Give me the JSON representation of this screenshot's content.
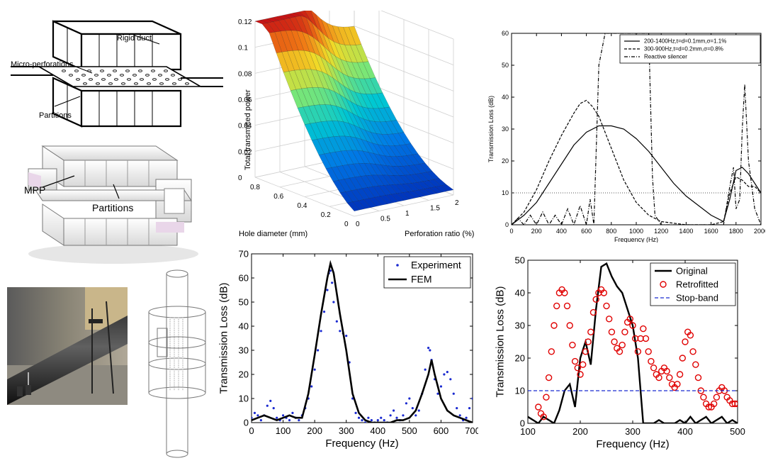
{
  "diagrams": {
    "duct_schematic": {
      "labels": [
        "Rigid duct",
        "Micro-perforations",
        "Partitions"
      ]
    },
    "cad_model": {
      "labels": [
        "MPP",
        "Partitions"
      ]
    }
  },
  "chart_data": [
    {
      "id": "surface3d",
      "type": "surface",
      "zlabel": "Total transmitted power",
      "xlabel": "Hole diameter (mm)",
      "ylabel": "Perforation ratio (%)",
      "z_ticks": [
        "0",
        "0.02",
        "0.04",
        "0.06",
        "0.08",
        "0.1",
        "0.12"
      ],
      "x_ticks": [
        "0",
        "0.2",
        "0.4",
        "0.6",
        "0.8"
      ],
      "y_ticks": [
        "0",
        "0.5",
        "1",
        "1.5",
        "2"
      ],
      "zlim": [
        0,
        0.12
      ],
      "grid": true
    },
    {
      "id": "tl_top_right",
      "type": "line",
      "xlabel": "Frequency (Hz)",
      "ylabel": "Transmission Loss (dB)",
      "xlim": [
        0,
        2000
      ],
      "ylim": [
        0,
        60
      ],
      "x_ticks": [
        "0",
        "200",
        "400",
        "600",
        "800",
        "1000",
        "1200",
        "1400",
        "1600",
        "1800",
        "2000"
      ],
      "y_ticks": [
        "0",
        "10",
        "20",
        "30",
        "40",
        "50",
        "60"
      ],
      "reference_line": 10,
      "legend": "top-right",
      "series": [
        {
          "name": "200-1400Hz,t=d=0.1mm,σ=1.1%",
          "style": "solid",
          "x": [
            0,
            100,
            200,
            300,
            400,
            500,
            600,
            700,
            800,
            900,
            1000,
            1100,
            1200,
            1300,
            1400,
            1500,
            1600,
            1700,
            1750,
            1800,
            1850,
            1900,
            1950,
            2000
          ],
          "y": [
            0,
            3,
            7,
            13,
            19,
            25,
            29,
            31,
            31,
            30,
            27,
            23,
            18,
            13,
            9,
            6,
            3,
            1,
            8,
            17,
            18,
            16,
            13,
            10
          ]
        },
        {
          "name": "300-900Hz,t=d=0.2mm,σ=0.8%",
          "style": "dashed",
          "x": [
            0,
            100,
            200,
            300,
            400,
            500,
            550,
            600,
            650,
            700,
            800,
            900,
            1000,
            1100,
            1200,
            1400,
            1600,
            1700,
            1750,
            1800,
            1850,
            1900,
            1950,
            2000
          ],
          "y": [
            0,
            4,
            11,
            20,
            28,
            35,
            38,
            39,
            37,
            34,
            24,
            14,
            7,
            3,
            1,
            0,
            0,
            1,
            10,
            15,
            14,
            12,
            12,
            10
          ]
        },
        {
          "name": "Reactive silencer",
          "style": "dashdot",
          "x": [
            0,
            50,
            100,
            150,
            200,
            250,
            300,
            350,
            400,
            450,
            500,
            550,
            600,
            630,
            660,
            700,
            750,
            1000,
            1100,
            1130,
            1150,
            1200,
            1300,
            1400,
            1600,
            1700,
            1750,
            1780,
            1800,
            1830,
            1850,
            1870,
            1900,
            1950,
            2000
          ],
          "y": [
            0,
            2,
            0,
            3,
            0,
            4,
            0,
            3,
            0,
            5,
            0,
            6,
            0,
            8,
            0,
            50,
            60,
            60,
            60,
            15,
            3,
            0,
            0,
            0,
            0,
            0,
            12,
            18,
            5,
            8,
            30,
            44,
            20,
            5,
            0
          ]
        }
      ]
    },
    {
      "id": "tl_bottom_middle",
      "type": "line",
      "xlabel": "Frequency (Hz)",
      "ylabel": "Transmission Loss (dB)",
      "xlim": [
        0,
        700
      ],
      "ylim": [
        0,
        70
      ],
      "x_ticks": [
        "0",
        "100",
        "200",
        "300",
        "400",
        "500",
        "600",
        "700"
      ],
      "y_ticks": [
        "0",
        "10",
        "20",
        "30",
        "40",
        "50",
        "60",
        "70"
      ],
      "legend": "top-right",
      "series": [
        {
          "name": "Experiment",
          "style": "points",
          "x": [
            0,
            10,
            20,
            30,
            40,
            50,
            60,
            70,
            80,
            90,
            100,
            110,
            120,
            130,
            140,
            150,
            160,
            170,
            180,
            190,
            200,
            210,
            220,
            230,
            240,
            245,
            250,
            255,
            260,
            270,
            280,
            290,
            300,
            310,
            320,
            330,
            340,
            350,
            360,
            370,
            380,
            390,
            400,
            410,
            420,
            430,
            440,
            450,
            460,
            470,
            480,
            490,
            500,
            510,
            520,
            530,
            540,
            550,
            560,
            565,
            570,
            580,
            590,
            600,
            610,
            620,
            630,
            640,
            650,
            660,
            670,
            680,
            690,
            700
          ],
          "y": [
            2,
            4,
            3,
            1,
            3,
            7,
            9,
            6,
            2,
            1,
            3,
            2,
            1,
            4,
            2,
            1,
            3,
            6,
            10,
            15,
            22,
            30,
            38,
            46,
            55,
            62,
            63,
            58,
            50,
            42,
            38,
            37,
            36,
            25,
            10,
            4,
            2,
            1,
            0,
            2,
            1,
            0,
            1,
            2,
            1,
            0,
            3,
            5,
            2,
            1,
            3,
            8,
            10,
            6,
            3,
            5,
            12,
            22,
            31,
            30,
            26,
            18,
            12,
            15,
            20,
            21,
            18,
            12,
            6,
            3,
            1,
            2,
            6,
            10
          ]
        },
        {
          "name": "FEM",
          "style": "solid",
          "x": [
            0,
            20,
            40,
            60,
            80,
            100,
            120,
            140,
            160,
            180,
            200,
            220,
            240,
            250,
            260,
            280,
            300,
            320,
            340,
            360,
            380,
            400,
            420,
            440,
            460,
            480,
            500,
            520,
            540,
            560,
            570,
            580,
            600,
            620,
            640,
            660,
            680,
            700
          ],
          "y": [
            1,
            2,
            3,
            2,
            1,
            2,
            3,
            2,
            2,
            12,
            28,
            45,
            60,
            66,
            62,
            45,
            30,
            12,
            4,
            1,
            0,
            0,
            0,
            0,
            1,
            1,
            2,
            5,
            12,
            20,
            26,
            20,
            10,
            5,
            3,
            2,
            1,
            0
          ]
        }
      ]
    },
    {
      "id": "tl_bottom_right",
      "type": "line",
      "xlabel": "Frequency (Hz)",
      "ylabel": "Transmission Loss (dB)",
      "xlim": [
        100,
        500
      ],
      "ylim": [
        0,
        50
      ],
      "x_ticks": [
        "100",
        "200",
        "300",
        "400",
        "500"
      ],
      "y_ticks": [
        "0",
        "10",
        "20",
        "30",
        "40",
        "50"
      ],
      "legend": "top-right",
      "series": [
        {
          "name": "Original",
          "style": "solid",
          "x": [
            100,
            110,
            120,
            130,
            140,
            150,
            160,
            170,
            180,
            190,
            200,
            210,
            220,
            230,
            240,
            250,
            260,
            270,
            280,
            290,
            300,
            310,
            320,
            330,
            340,
            350,
            360,
            370,
            380,
            390,
            400,
            410,
            420,
            430,
            440,
            450,
            460,
            470,
            480,
            490,
            500
          ],
          "y": [
            2,
            1,
            0,
            2,
            1,
            0,
            4,
            10,
            12,
            5,
            20,
            25,
            18,
            35,
            48,
            49,
            45,
            42,
            40,
            35,
            30,
            20,
            0,
            0,
            0,
            1,
            0,
            0,
            0,
            1,
            0,
            2,
            0,
            1,
            2,
            0,
            1,
            2,
            0,
            1,
            0
          ]
        },
        {
          "name": "Retrofitted",
          "style": "circles",
          "x": [
            120,
            125,
            130,
            135,
            140,
            145,
            150,
            155,
            160,
            165,
            170,
            175,
            180,
            185,
            190,
            195,
            200,
            205,
            210,
            215,
            220,
            225,
            230,
            235,
            240,
            245,
            250,
            255,
            260,
            265,
            270,
            275,
            280,
            285,
            290,
            295,
            300,
            305,
            310,
            315,
            320,
            325,
            330,
            335,
            340,
            345,
            350,
            355,
            360,
            365,
            370,
            375,
            380,
            385,
            390,
            395,
            400,
            405,
            410,
            415,
            420,
            425,
            430,
            435,
            440,
            445,
            450,
            455,
            460,
            465,
            470,
            475,
            480,
            485,
            490,
            495,
            500
          ],
          "y": [
            5,
            3,
            2,
            8,
            14,
            22,
            30,
            36,
            40,
            41,
            40,
            36,
            30,
            24,
            19,
            17,
            15,
            18,
            22,
            25,
            28,
            34,
            38,
            40,
            41,
            40,
            36,
            32,
            28,
            25,
            23,
            22,
            24,
            28,
            31,
            32,
            30,
            26,
            22,
            26,
            29,
            26,
            22,
            19,
            17,
            15,
            14,
            16,
            17,
            16,
            14,
            12,
            11,
            12,
            15,
            20,
            25,
            28,
            27,
            22,
            18,
            14,
            10,
            8,
            6,
            5,
            5,
            6,
            8,
            10,
            11,
            10,
            8,
            7,
            6,
            6,
            6
          ]
        },
        {
          "name": "Stop-band",
          "style": "dashed",
          "x": [
            100,
            500
          ],
          "y": [
            10,
            10
          ]
        }
      ]
    }
  ]
}
